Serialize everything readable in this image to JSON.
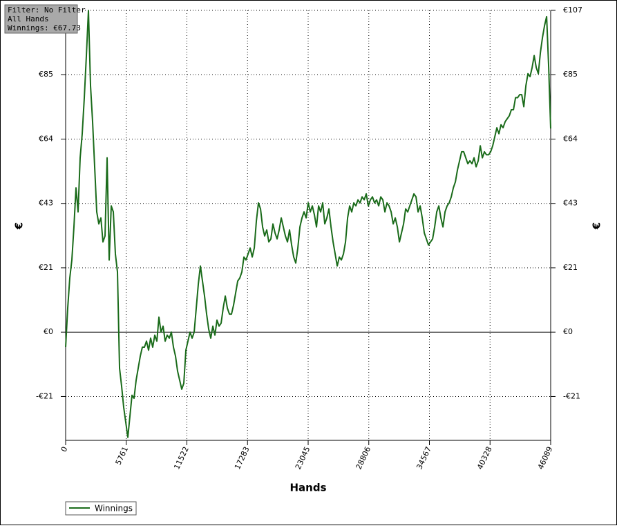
{
  "chart_data": {
    "type": "line",
    "xlabel": "Hands",
    "ylabel": "€",
    "annotations": [
      "Filter: No Filter",
      "All Hands",
      "Winnings: €67.73"
    ],
    "grid": true,
    "legend": "bottom-left",
    "xlim": [
      0,
      46089
    ],
    "ylim": [
      -36,
      107.05
    ],
    "xticks": [
      0,
      5761,
      11522,
      17283,
      23045,
      28806,
      34567,
      40328,
      46089
    ],
    "yticks": [
      {
        "value": -21.41,
        "label": "-€21"
      },
      {
        "value": 0,
        "label": "€0"
      },
      {
        "value": 21.41,
        "label": "€21"
      },
      {
        "value": 42.82,
        "label": "€43"
      },
      {
        "value": 64.23,
        "label": "€64"
      },
      {
        "value": 85.64,
        "label": "€85"
      },
      {
        "value": 107.05,
        "label": "€107"
      }
    ],
    "x": [
      0,
      197,
      394,
      591,
      788,
      985,
      1182,
      1379,
      1576,
      1773,
      1970,
      2167,
      2364,
      2561,
      2758,
      2955,
      3152,
      3349,
      3546,
      3743,
      3940,
      4137,
      4334,
      4531,
      4728,
      4925,
      5122,
      5319,
      5516,
      5713,
      5910,
      6107,
      6304,
      6501,
      6698,
      6895,
      7092,
      7289,
      7486,
      7683,
      7880,
      8077,
      8274,
      8471,
      8668,
      8865,
      9062,
      9259,
      9456,
      9653,
      9850,
      10047,
      10244,
      10441,
      10638,
      10835,
      11032,
      11229,
      11426,
      11623,
      11820,
      12017,
      12214,
      12411,
      12608,
      12805,
      13002,
      13199,
      13396,
      13593,
      13790,
      13987,
      14184,
      14381,
      14578,
      14775,
      14972,
      15169,
      15366,
      15563,
      15760,
      15957,
      16154,
      16351,
      16548,
      16745,
      16942,
      17139,
      17336,
      17533,
      17730,
      17927,
      18124,
      18321,
      18518,
      18715,
      18912,
      19109,
      19306,
      19503,
      19700,
      19897,
      20094,
      20291,
      20488,
      20685,
      20882,
      21079,
      21276,
      21473,
      21670,
      21867,
      22064,
      22261,
      22458,
      22655,
      22852,
      23049,
      23246,
      23443,
      23640,
      23837,
      24034,
      24231,
      24428,
      24625,
      24822,
      25019,
      25216,
      25413,
      25610,
      25807,
      26004,
      26201,
      26398,
      26595,
      26792,
      26989,
      27186,
      27383,
      27580,
      27777,
      27974,
      28171,
      28368,
      28565,
      28762,
      28959,
      29156,
      29353,
      29550,
      29747,
      29944,
      30141,
      30338,
      30535,
      30732,
      30929,
      31126,
      31323,
      31520,
      31717,
      31914,
      32111,
      32308,
      32505,
      32702,
      32899,
      33096,
      33293,
      33490,
      33687,
      33884,
      34081,
      34278,
      34475,
      34672,
      34869,
      35066,
      35263,
      35460,
      35657,
      35854,
      36051,
      36248,
      36445,
      36642,
      36839,
      37036,
      37233,
      37430,
      37627,
      37824,
      38021,
      38218,
      38415,
      38612,
      38809,
      39006,
      39203,
      39400,
      39597,
      39794,
      39991,
      40188,
      40385,
      40582,
      40779,
      40976,
      41173,
      41370,
      41567,
      41764,
      41961,
      42158,
      42355,
      42552,
      42749,
      42946,
      43143,
      43340,
      43537,
      43734,
      43931,
      44128,
      44325,
      44522,
      44719,
      44916,
      45113,
      45310,
      45507,
      45704,
      45901,
      46089
    ],
    "series": [
      {
        "name": "Winnings",
        "color": "#1a6b1a",
        "values": [
          -5,
          8,
          18,
          24,
          35,
          48,
          40,
          58,
          66,
          78,
          92,
          107,
          82,
          70,
          55,
          40,
          36,
          38,
          30,
          32,
          58,
          24,
          42,
          40,
          26,
          20,
          -12,
          -18,
          -25,
          -30,
          -35,
          -28,
          -21,
          -22,
          -16,
          -12,
          -8,
          -5,
          -5,
          -3,
          -6,
          -2,
          -5,
          -1,
          -3,
          5,
          0,
          2,
          -3,
          -1,
          -2,
          0,
          -5,
          -8,
          -13,
          -16,
          -19,
          -17,
          -6,
          -3,
          0,
          -2,
          0,
          8,
          16,
          22,
          17,
          12,
          6,
          1,
          -2,
          2,
          -1,
          4,
          2,
          3,
          8,
          12,
          8,
          6,
          6,
          9,
          13,
          17,
          18,
          20,
          25,
          24,
          26,
          28,
          25,
          28,
          37,
          43,
          41,
          35,
          32,
          34,
          30,
          31,
          36,
          33,
          31,
          34,
          38,
          35,
          32,
          30,
          34,
          29,
          25,
          23,
          28,
          35,
          38,
          40,
          38,
          43,
          40,
          42,
          39,
          35,
          42,
          40,
          43,
          36,
          38,
          41,
          35,
          30,
          26,
          22,
          25,
          24,
          26,
          30,
          38,
          42,
          40,
          43,
          42,
          44,
          43,
          45,
          44,
          46,
          42,
          44,
          45,
          43,
          44,
          42,
          45,
          44,
          40,
          43,
          42,
          40,
          36,
          38,
          35,
          30,
          33,
          36,
          41,
          40,
          42,
          44,
          46,
          45,
          40,
          42,
          38,
          33,
          31,
          29,
          30,
          31,
          35,
          40,
          42,
          38,
          35,
          40,
          42,
          43,
          45,
          48,
          50,
          54,
          57,
          60,
          60,
          58,
          56,
          57,
          56,
          58,
          55,
          57,
          62,
          58,
          60,
          59,
          59,
          60,
          62,
          65,
          68,
          66,
          69,
          68,
          70,
          71,
          72,
          74,
          74,
          78,
          78,
          79,
          79,
          75,
          82,
          86,
          85,
          88,
          92,
          88,
          86,
          93,
          98,
          102,
          105,
          88,
          67.73
        ]
      }
    ]
  }
}
